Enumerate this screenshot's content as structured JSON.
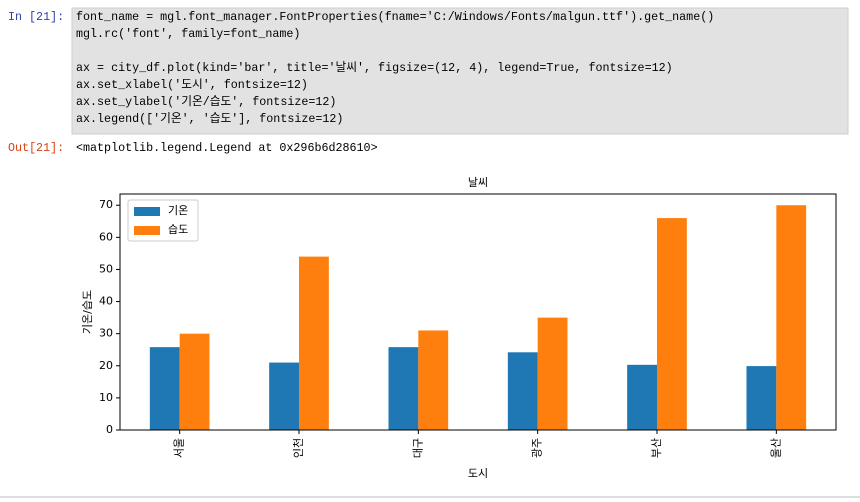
{
  "cell": {
    "in_prompt": "In [21]:",
    "code_blocks": [
      [
        "font_name = mgl.font_manager.FontProperties(fname='C:/Windows/Fonts/malgun.ttf').get_name()",
        "mgl.rc('font', family=font_name)"
      ],
      [
        "ax = city_df.plot(kind='bar', title='날씨', figsize=(12, 4), legend=True, fontsize=12)",
        "ax.set_xlabel('도시', fontsize=12)",
        "ax.set_ylabel('기온/습도', fontsize=12)",
        "ax.legend(['기온', '습도'], fontsize=12)"
      ]
    ],
    "out_prompt": "Out[21]:",
    "output": "<matplotlib.legend.Legend at 0x296b6d28610>"
  },
  "chart_data": {
    "type": "bar",
    "title": "날씨",
    "x_label": "도시",
    "y_label": "기온/습도",
    "categories": [
      "서울",
      "인천",
      "대구",
      "광주",
      "부산",
      "울산"
    ],
    "series": [
      {
        "name": "기온",
        "color": "#1f77b4",
        "values": [
          25.8,
          21,
          25.8,
          24.2,
          20.3,
          19.9
        ]
      },
      {
        "name": "습도",
        "color": "#ff7f0e",
        "values": [
          30,
          54,
          31,
          35,
          66,
          70
        ]
      }
    ],
    "ylim": [
      0,
      73.5
    ],
    "yticks": [
      0,
      10,
      20,
      30,
      40,
      50,
      60,
      70
    ],
    "legend": "upper left",
    "tick_rotation": 90
  }
}
